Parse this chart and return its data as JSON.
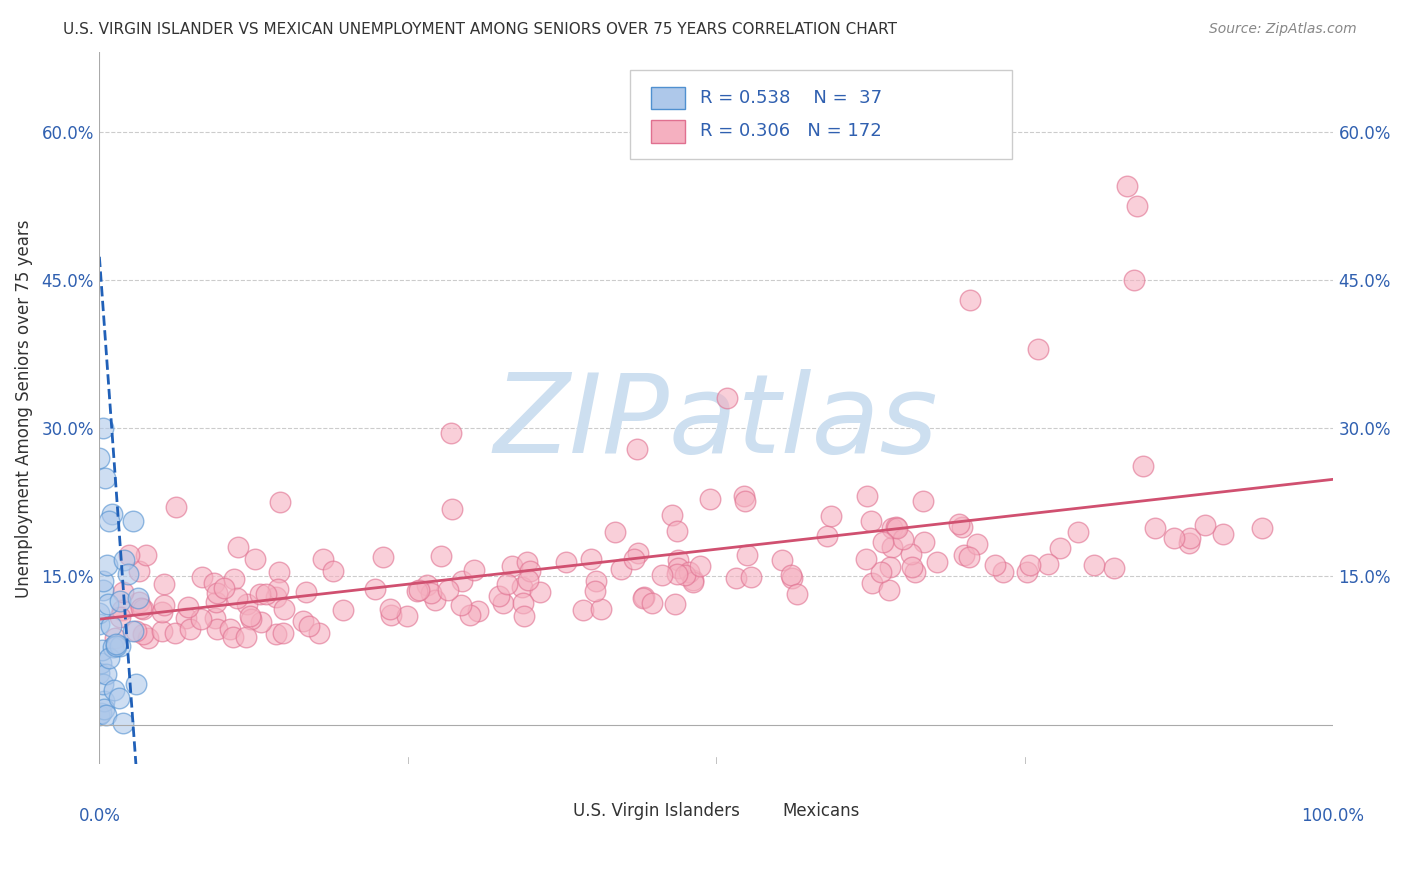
{
  "title": "U.S. VIRGIN ISLANDER VS MEXICAN UNEMPLOYMENT AMONG SENIORS OVER 75 YEARS CORRELATION CHART",
  "source": "Source: ZipAtlas.com",
  "ylabel": "Unemployment Among Seniors over 75 years",
  "yticks": [
    0.0,
    0.15,
    0.3,
    0.45,
    0.6
  ],
  "ytick_labels": [
    "",
    "15.0%",
    "30.0%",
    "45.0%",
    "60.0%"
  ],
  "xlim": [
    0.0,
    1.0
  ],
  "ylim": [
    -0.04,
    0.68
  ],
  "r_vi": 0.538,
  "n_vi": 37,
  "r_mx": 0.306,
  "n_mx": 172,
  "vi_face_color": "#aec8ea",
  "vi_edge_color": "#5090d0",
  "vi_line_color": "#2060b8",
  "mx_face_color": "#f5b0c0",
  "mx_edge_color": "#e07090",
  "mx_line_color": "#d05070",
  "watermark_color": "#cddff0",
  "legend_label_vi": "U.S. Virgin Islanders",
  "legend_label_mx": "Mexicans",
  "background_color": "#ffffff",
  "grid_color": "#cccccc",
  "title_color": "#333333",
  "axis_tick_color": "#3060b0",
  "label_color": "#333333"
}
